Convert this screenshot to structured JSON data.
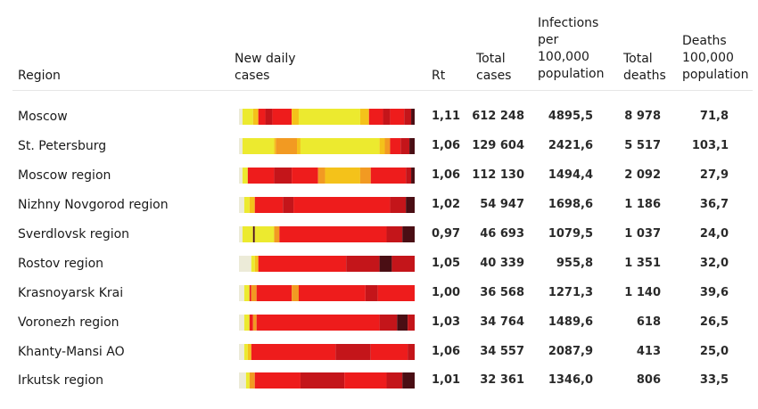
{
  "headers": {
    "region": "Region",
    "new_cases": [
      "New daily",
      "cases"
    ],
    "rt": "Rt",
    "total_cases": [
      "Total",
      "cases"
    ],
    "infections": [
      "Infections",
      "per",
      "100,000",
      "population"
    ],
    "total_deaths": [
      "Total",
      "deaths"
    ],
    "deaths_per": [
      "Deaths",
      "100,000",
      "population"
    ]
  },
  "colors": {
    "low": "#ecea2f",
    "mid_low": "#f4c21a",
    "mid": "#f29a22",
    "high": "#ee1c1c",
    "very_high": "#c4151a",
    "peak": "#4a0e14",
    "start": "#ecebd8"
  },
  "chart_data": {
    "type": "table",
    "columns": [
      "Region",
      "New daily cases",
      "Rt",
      "Total cases",
      "Infections per 100,000 population",
      "Total deaths",
      "Deaths 100,000 population"
    ],
    "rows": [
      {
        "region": "Moscow",
        "rt": "1,11",
        "total_cases": "612 248",
        "infections_per_100k": "4895,5",
        "total_deaths": "8 978",
        "deaths_per_100k": "71,8",
        "heat": [
          [
            "start",
            0.0
          ],
          [
            "low",
            0.02
          ],
          [
            "mid_low",
            0.08
          ],
          [
            "high",
            0.11
          ],
          [
            "very_high",
            0.15
          ],
          [
            "high",
            0.19
          ],
          [
            "mid_low",
            0.3
          ],
          [
            "low",
            0.34
          ],
          [
            "mid_low",
            0.69
          ],
          [
            "high",
            0.74
          ],
          [
            "very_high",
            0.82
          ],
          [
            "high",
            0.86
          ],
          [
            "very_high",
            0.94
          ],
          [
            "peak",
            0.98
          ]
        ]
      },
      {
        "region": "St. Petersburg",
        "rt": "1,06",
        "total_cases": "129 604",
        "infections_per_100k": "2421,6",
        "total_deaths": "5 517",
        "deaths_per_100k": "103,1",
        "heat": [
          [
            "start",
            0.0
          ],
          [
            "low",
            0.02
          ],
          [
            "mid_low",
            0.2
          ],
          [
            "mid",
            0.21
          ],
          [
            "mid_low",
            0.33
          ],
          [
            "low",
            0.35
          ],
          [
            "mid_low",
            0.8
          ],
          [
            "mid",
            0.83
          ],
          [
            "high",
            0.86
          ],
          [
            "very_high",
            0.92
          ],
          [
            "peak",
            0.97
          ]
        ]
      },
      {
        "region": "Moscow region",
        "rt": "1,06",
        "total_cases": "112 130",
        "infections_per_100k": "1494,4",
        "total_deaths": "2 092",
        "deaths_per_100k": "27,9",
        "heat": [
          [
            "start",
            0.0
          ],
          [
            "low",
            0.02
          ],
          [
            "high",
            0.05
          ],
          [
            "very_high",
            0.2
          ],
          [
            "high",
            0.3
          ],
          [
            "mid",
            0.45
          ],
          [
            "mid_low",
            0.49
          ],
          [
            "mid",
            0.69
          ],
          [
            "high",
            0.75
          ],
          [
            "very_high",
            0.95
          ],
          [
            "peak",
            0.98
          ]
        ]
      },
      {
        "region": "Nizhny Novgorod region",
        "rt": "1,02",
        "total_cases": "54 947",
        "infections_per_100k": "1698,6",
        "total_deaths": "1 186",
        "deaths_per_100k": "36,7",
        "heat": [
          [
            "start",
            0.0
          ],
          [
            "low",
            0.03
          ],
          [
            "mid_low",
            0.06
          ],
          [
            "high",
            0.09
          ],
          [
            "very_high",
            0.25
          ],
          [
            "high",
            0.31
          ],
          [
            "very_high",
            0.86
          ],
          [
            "peak",
            0.95
          ]
        ]
      },
      {
        "region": "Sverdlovsk region",
        "rt": "0,97",
        "total_cases": "46 693",
        "infections_per_100k": "1079,5",
        "total_deaths": "1 037",
        "deaths_per_100k": "24,0",
        "heat": [
          [
            "start",
            0.0
          ],
          [
            "low",
            0.02
          ],
          [
            "peak",
            0.08
          ],
          [
            "low",
            0.09
          ],
          [
            "mid",
            0.2
          ],
          [
            "high",
            0.23
          ],
          [
            "very_high",
            0.84
          ],
          [
            "peak",
            0.93
          ]
        ]
      },
      {
        "region": "Rostov region",
        "rt": "1,05",
        "total_cases": "40 339",
        "infections_per_100k": "955,8",
        "total_deaths": "1 351",
        "deaths_per_100k": "32,0",
        "heat": [
          [
            "start",
            0.0
          ],
          [
            "low",
            0.07
          ],
          [
            "mid_low",
            0.09
          ],
          [
            "high",
            0.11
          ],
          [
            "very_high",
            0.61
          ],
          [
            "peak",
            0.8
          ],
          [
            "very_high",
            0.87
          ]
        ]
      },
      {
        "region": "Krasnoyarsk Krai",
        "rt": "1,00",
        "total_cases": "36 568",
        "infections_per_100k": "1271,3",
        "total_deaths": "1 140",
        "deaths_per_100k": "39,6",
        "heat": [
          [
            "start",
            0.0
          ],
          [
            "low",
            0.03
          ],
          [
            "high",
            0.06
          ],
          [
            "mid",
            0.07
          ],
          [
            "high",
            0.1
          ],
          [
            "mid",
            0.3
          ],
          [
            "high",
            0.34
          ],
          [
            "very_high",
            0.72
          ],
          [
            "high",
            0.79
          ]
        ]
      },
      {
        "region": "Voronezh region",
        "rt": "1,03",
        "total_cases": "34 764",
        "infections_per_100k": "1489,6",
        "total_deaths": "618",
        "deaths_per_100k": "26,5",
        "heat": [
          [
            "start",
            0.0
          ],
          [
            "low",
            0.03
          ],
          [
            "high",
            0.06
          ],
          [
            "mid",
            0.08
          ],
          [
            "high",
            0.1
          ],
          [
            "very_high",
            0.8
          ],
          [
            "peak",
            0.9
          ],
          [
            "very_high",
            0.96
          ]
        ]
      },
      {
        "region": "Khanty-Mansi AO",
        "rt": "1,06",
        "total_cases": "34 557",
        "infections_per_100k": "2087,9",
        "total_deaths": "413",
        "deaths_per_100k": "25,0",
        "heat": [
          [
            "start",
            0.0
          ],
          [
            "low",
            0.03
          ],
          [
            "mid_low",
            0.05
          ],
          [
            "high",
            0.07
          ],
          [
            "very_high",
            0.55
          ],
          [
            "high",
            0.75
          ],
          [
            "very_high",
            0.96
          ]
        ]
      },
      {
        "region": "Irkutsk region",
        "rt": "1,01",
        "total_cases": "32 361",
        "infections_per_100k": "1346,0",
        "total_deaths": "806",
        "deaths_per_100k": "33,5",
        "heat": [
          [
            "start",
            0.0
          ],
          [
            "low",
            0.04
          ],
          [
            "mid",
            0.06
          ],
          [
            "high",
            0.09
          ],
          [
            "very_high",
            0.35
          ],
          [
            "high",
            0.6
          ],
          [
            "very_high",
            0.84
          ],
          [
            "peak",
            0.93
          ]
        ]
      }
    ]
  }
}
